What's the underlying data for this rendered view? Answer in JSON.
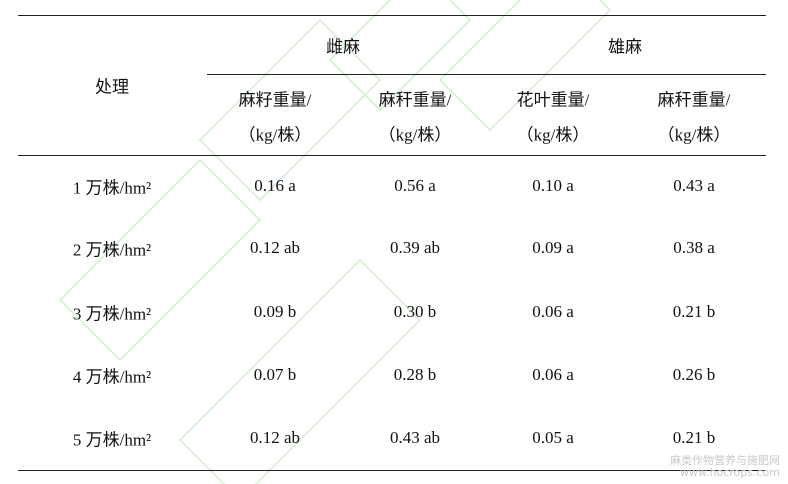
{
  "header": {
    "row_label": "处理",
    "groups": [
      "雌麻",
      "雄麻"
    ],
    "columns": [
      {
        "name": "麻籽重量/",
        "unit": "（kg/株）"
      },
      {
        "name": "麻秆重量/",
        "unit": "（kg/株）"
      },
      {
        "name": "花叶重量/",
        "unit": "（kg/株）"
      },
      {
        "name": "麻秆重量/",
        "unit": "（kg/株）"
      }
    ]
  },
  "table": {
    "rows": [
      [
        "1 万株/hm²",
        "0.16 a",
        "0.56 a",
        "0.10 a",
        "0.43 a"
      ],
      [
        "2 万株/hm²",
        "0.12 ab",
        "0.39 ab",
        "0.09 a",
        "0.38 a"
      ],
      [
        "3 万株/hm²",
        "0.09 b",
        "0.30 b",
        "0.06 a",
        "0.21 b"
      ],
      [
        "4 万株/hm²",
        "0.07 b",
        "0.28 b",
        "0.06 a",
        "0.26 b"
      ],
      [
        "5 万株/hm²",
        "0.12 ab",
        "0.43 ab",
        "0.05 a",
        "0.21 b"
      ]
    ]
  },
  "watermark": {
    "site": "麻类作物营养与施肥网",
    "url": "www.hocrops.com"
  }
}
